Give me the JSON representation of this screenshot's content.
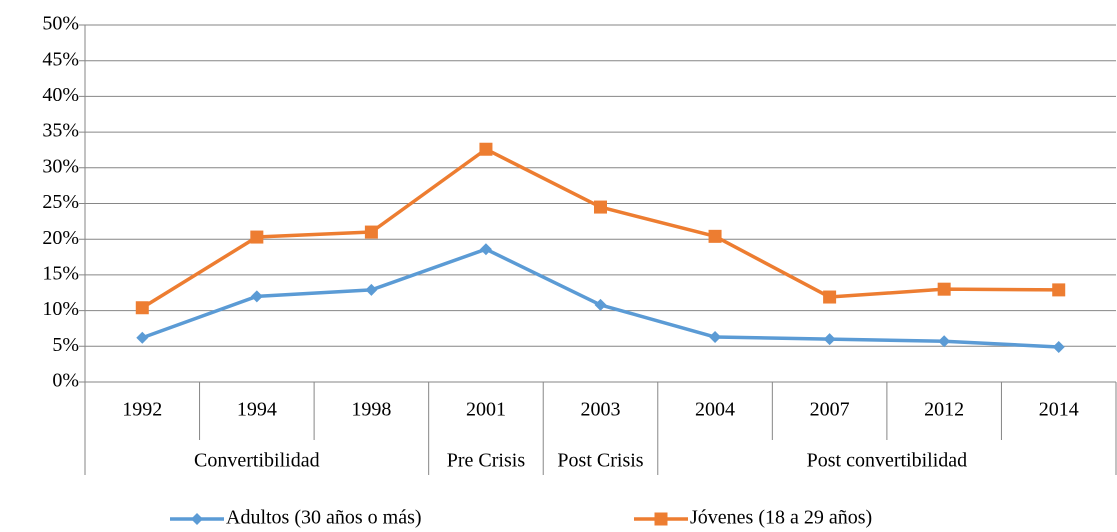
{
  "chart_data": {
    "type": "line",
    "categories": [
      "1992",
      "1994",
      "1998",
      "2001",
      "2003",
      "2004",
      "2007",
      "2012",
      "2014"
    ],
    "groups": [
      "Convertibilidad",
      null,
      null,
      "Pre Crisis",
      "Post Crisis",
      "Post convertibilidad",
      null,
      null,
      null
    ],
    "series": [
      {
        "name": "Adultos (30 años o más)",
        "color": "#5b9bd5",
        "marker": "diamond",
        "values": [
          6.2,
          12.0,
          12.9,
          18.6,
          10.8,
          6.3,
          6.0,
          5.7,
          4.9
        ]
      },
      {
        "name": "Jóvenes (18 a 29 años)",
        "color": "#ed7d31",
        "marker": "square",
        "values": [
          10.4,
          20.3,
          21.0,
          32.6,
          24.5,
          20.4,
          11.9,
          13.0,
          12.9
        ]
      }
    ],
    "ylim": [
      0,
      50
    ],
    "yticks": [
      {
        "value": 0,
        "label": "0%"
      },
      {
        "value": 5,
        "label": "5%"
      },
      {
        "value": 10,
        "label": "10%"
      },
      {
        "value": 15,
        "label": "15%"
      },
      {
        "value": 20,
        "label": "20%"
      },
      {
        "value": 25,
        "label": "25%"
      },
      {
        "value": 30,
        "label": "30%"
      },
      {
        "value": 35,
        "label": "35%"
      },
      {
        "value": 40,
        "label": "40%"
      },
      {
        "value": 45,
        "label": "45%"
      },
      {
        "value": 50,
        "label": "50%"
      }
    ],
    "grid": true,
    "legend": "bottom"
  }
}
